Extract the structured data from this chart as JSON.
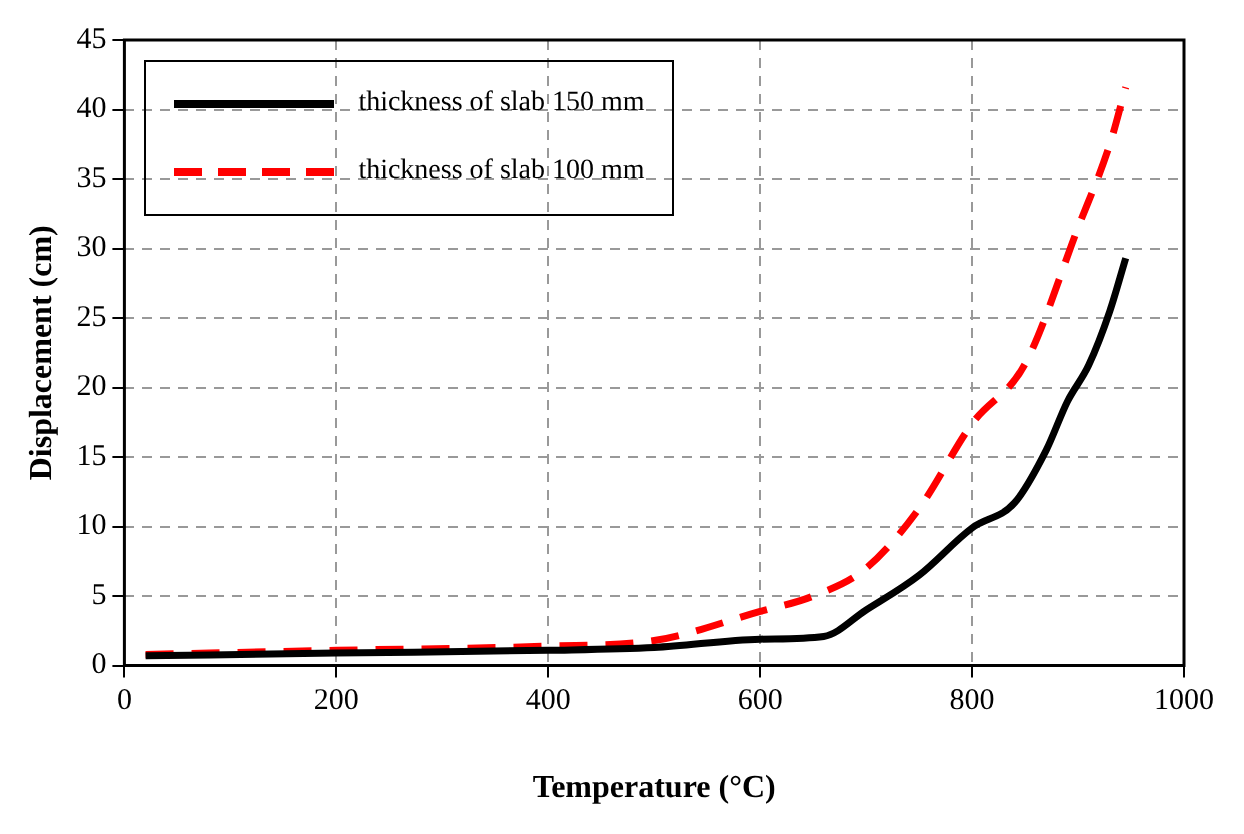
{
  "chart_data": {
    "type": "line",
    "xlabel": "Temperature (°C)",
    "ylabel": "Displacement (cm)",
    "xlim": [
      0,
      1000
    ],
    "xticks": [
      0,
      200,
      400,
      600,
      800,
      1000
    ],
    "ylim": [
      0,
      45
    ],
    "yticks": [
      0,
      5,
      10,
      15,
      20,
      25,
      30,
      35,
      40,
      45
    ],
    "grid": true,
    "legend": "top left",
    "marker": "none",
    "series": [
      {
        "name": "thickness of slab 150 mm",
        "color": "#000000",
        "line_style": "solid",
        "x": [
          20,
          200,
          400,
          500,
          600,
          660,
          700,
          750,
          800,
          840,
          870,
          890,
          910,
          930,
          945
        ],
        "values": [
          0.7,
          0.9,
          1.1,
          1.3,
          1.9,
          2.1,
          4.0,
          6.5,
          9.9,
          11.7,
          15.5,
          19,
          21.6,
          25.5,
          29.3
        ]
      },
      {
        "name": "thickness of slab 100 mm",
        "color": "#ff0000",
        "line_style": "dashed",
        "x": [
          20,
          200,
          400,
          500,
          600,
          650,
          700,
          750,
          800,
          850,
          900,
          930,
          945
        ],
        "values": [
          0.8,
          1.1,
          1.4,
          1.8,
          3.9,
          5.0,
          7.0,
          11.3,
          17.4,
          21.7,
          31.5,
          37.5,
          41.6
        ]
      }
    ]
  }
}
